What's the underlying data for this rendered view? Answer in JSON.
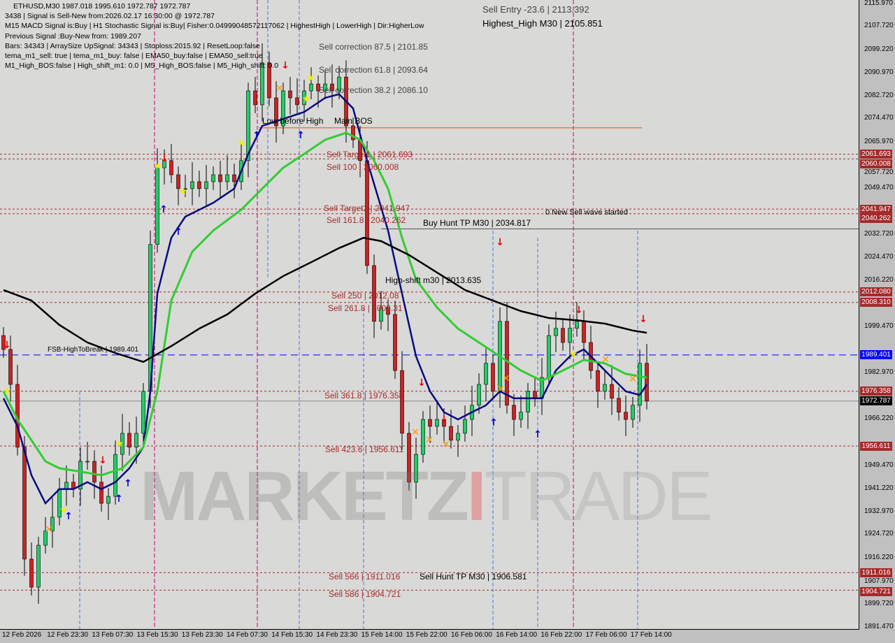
{
  "header": {
    "symbol_line": "ETHUSD,M30  1987.018 1995.610 1972.787 1972.787",
    "info_lines": [
      "3438 | Signal is Sell-New from:2026.02.17 16:30:00 @ 1972.787",
      "M15 MACD Signal is:Buy | H1 Stochastic Signal is:Buy| Fisher:0.04999048572117062 | HighestHigh | LowerHigh | Dir:HigherLow",
      "Previous Signal :Buy-New from: 1989.207",
      "Bars: 34343 | ArraySize UpSignal: 34343 | Stoploss:2015.92 | ResetLoop:false",
      "tema_m1_sell: true | tema_m1_buy: false | EMA50_buy:false | EMA50_sell:true",
      "M1_High_BOS:false | High_shift_m1: 0.0 | M5_High_BOS:false | M5_High_shift: 0.0"
    ]
  },
  "annotations": {
    "sell_entry": "Sell Entry -23.6 | 2113.392",
    "highest_high": "Highest_High    M30 | 2105.851",
    "corr_875": "Sell correction 87.5 | 2101.85",
    "corr_618": "Sell correction 61.8 | 2093.64",
    "corr_382": "Sell correction 38.2 | 2086.10",
    "low_before_high": "Low before High",
    "main_bos": "Main BOS",
    "sell_target1": "Sell Target1 | 2061.693",
    "sell_100": "Sell 100 | 2060.008",
    "sell_target2": "Sell Target2 | 2041.947",
    "sell_1618": "Sell 161.8 | 2040.262",
    "buy_hunt": "Buy Hunt TP M30 | 2034.817",
    "new_sell_wave": "0 New Sell wave started",
    "high_shift": "High-shift m30 | 2013.635",
    "sell_250": "Sell 250 | 2012.08",
    "sell_2618": "Sell 261.8 | 2008.31",
    "fsb": "FSB-HighToBreak | 1989.401",
    "sell_3618": "Sell 361.8 | 1976.358",
    "sell_4236": "Sell 423.6 | 1956.611",
    "sell_566": "Sell 566 | 1911.016",
    "sell_hunt": "Sell Hunt TP M30 | 1906.581",
    "sell_586": "Sell 586 | 1904.721"
  },
  "watermark": {
    "left": "MARKETZ",
    "bar": "I",
    "right": "TRADE"
  },
  "chart_data": {
    "type": "candlestick",
    "symbol": "ETHUSD",
    "timeframe": "M30",
    "ylim": [
      1891.47,
      2115.97
    ],
    "y_ticks": [
      "2115.970",
      "2107.720",
      "2099.220",
      "2090.970",
      "2082.720",
      "2074.470",
      "2065.970",
      "2057.720",
      "2049.470",
      "2032.720",
      "2024.470",
      "2016.220",
      "1999.470",
      "1982.970",
      "1966.220",
      "1949.470",
      "1941.220",
      "1932.970",
      "1924.720",
      "1916.220",
      "1907.970",
      "1899.720",
      "1891.470"
    ],
    "x_ticks": [
      "12 Feb 2026",
      "12 Feb 23:30",
      "13 Feb 07:30",
      "13 Feb 15:30",
      "13 Feb 23:30",
      "14 Feb 07:30",
      "14 Feb 15:30",
      "14 Feb 23:30",
      "15 Feb 14:00",
      "15 Feb 22:00",
      "16 Feb 06:00",
      "16 Feb 14:00",
      "16 Feb 22:00",
      "17 Feb 06:00",
      "17 Feb 14:00"
    ],
    "closes": [
      1991.4,
      1978.8,
      1956.2,
      1915.9,
      1905.8,
      1920.9,
      1926.0,
      1931.0,
      1941.1,
      1943.6,
      1941.1,
      1951.1,
      1951.1,
      1943.6,
      1936.0,
      1938.5,
      1953.6,
      1961.2,
      1956.2,
      1961.2,
      1976.3,
      2029.2,
      2056.8,
      2059.4,
      2054.3,
      2049.3,
      2049.3,
      2051.8,
      2049.3,
      2051.8,
      2054.3,
      2051.8,
      2054.3,
      2051.8,
      2059.4,
      2084.5,
      2079.5,
      2094.6,
      2082.0,
      2071.9,
      2084.5,
      2082.0,
      2079.5,
      2084.5,
      2087.0,
      2084.5,
      2087.0,
      2084.5,
      2089.5,
      2071.9,
      2066.9,
      2059.4,
      2021.6,
      2001.5,
      2006.5,
      2004.0,
      1983.8,
      1961.2,
      1943.6,
      1953.6,
      1966.2,
      1963.7,
      1966.2,
      1963.7,
      1958.7,
      1961.2,
      1966.2,
      1971.3,
      1978.8,
      1986.4,
      1976.3,
      2001.5,
      1971.3,
      1966.2,
      1968.8,
      1976.3,
      1973.8,
      1981.3,
      1996.4,
      1999.0,
      1993.9,
      1999.0,
      2001.5,
      1993.9,
      1983.8,
      1976.3,
      1978.8,
      1973.8,
      1968.8,
      1966.2,
      1971.3,
      1986.4,
      1972.8
    ],
    "ma_series": [
      {
        "color": "#0a0a80",
        "points": [
          [
            0,
            1973.8
          ],
          [
            2,
            1963.7
          ],
          [
            4,
            1946.1
          ],
          [
            6,
            1936.0
          ],
          [
            8,
            1941.1
          ],
          [
            10,
            1941.1
          ],
          [
            12,
            1943.6
          ],
          [
            14,
            1941.1
          ],
          [
            16,
            1943.6
          ],
          [
            18,
            1948.6
          ],
          [
            20,
            1956.2
          ],
          [
            21,
            1976.3
          ],
          [
            22,
            2011.5
          ],
          [
            24,
            2031.6
          ],
          [
            26,
            2039.2
          ],
          [
            28,
            2041.7
          ],
          [
            30,
            2044.2
          ],
          [
            33,
            2049.3
          ],
          [
            35,
            2061.8
          ],
          [
            37,
            2071.9
          ],
          [
            40,
            2074.4
          ],
          [
            43,
            2076.9
          ],
          [
            46,
            2082.0
          ],
          [
            48,
            2083.3
          ],
          [
            50,
            2078.2
          ],
          [
            52,
            2059.4
          ],
          [
            55,
            2034.2
          ],
          [
            57,
            2011.5
          ],
          [
            59,
            1988.9
          ],
          [
            61,
            1976.3
          ],
          [
            63,
            1968.8
          ],
          [
            65,
            1966.2
          ],
          [
            67,
            1968.8
          ],
          [
            69,
            1971.3
          ],
          [
            71,
            1976.3
          ],
          [
            73,
            1973.8
          ],
          [
            75,
            1973.8
          ],
          [
            77,
            1973.8
          ],
          [
            79,
            1983.8
          ],
          [
            81,
            1988.9
          ],
          [
            83,
            1991.4
          ],
          [
            85,
            1986.4
          ],
          [
            87,
            1981.3
          ],
          [
            89,
            1976.3
          ],
          [
            91,
            1975.0
          ],
          [
            92,
            1978.8
          ]
        ]
      },
      {
        "color": "#33cc33",
        "points": [
          [
            0,
            1976.3
          ],
          [
            2,
            1966.2
          ],
          [
            4,
            1958.7
          ],
          [
            6,
            1951.1
          ],
          [
            8,
            1948.6
          ],
          [
            11,
            1947.4
          ],
          [
            14,
            1946.1
          ],
          [
            17,
            1948.6
          ],
          [
            20,
            1956.2
          ],
          [
            22,
            1976.3
          ],
          [
            24,
            2009.0
          ],
          [
            27,
            2026.6
          ],
          [
            30,
            2034.2
          ],
          [
            34,
            2041.7
          ],
          [
            37,
            2049.3
          ],
          [
            40,
            2056.8
          ],
          [
            43,
            2061.8
          ],
          [
            46,
            2066.9
          ],
          [
            49,
            2069.4
          ],
          [
            51,
            2066.9
          ],
          [
            53,
            2059.4
          ],
          [
            55,
            2049.3
          ],
          [
            57,
            2031.6
          ],
          [
            59,
            2016.6
          ],
          [
            62,
            2006.5
          ],
          [
            65,
            1998.9
          ],
          [
            68,
            1993.9
          ],
          [
            71,
            1988.9
          ],
          [
            74,
            1983.8
          ],
          [
            77,
            1980.1
          ],
          [
            80,
            1983.8
          ],
          [
            83,
            1987.6
          ],
          [
            86,
            1986.4
          ],
          [
            89,
            1982.6
          ],
          [
            92,
            1981.3
          ]
        ]
      },
      {
        "color": "#000000",
        "points": [
          [
            0,
            2012.8
          ],
          [
            4,
            2009.0
          ],
          [
            8,
            2000.2
          ],
          [
            12,
            1993.9
          ],
          [
            16,
            1990.1
          ],
          [
            20,
            1986.9
          ],
          [
            24,
            1992.6
          ],
          [
            28,
            1998.9
          ],
          [
            32,
            2004.0
          ],
          [
            36,
            2011.5
          ],
          [
            40,
            2017.8
          ],
          [
            44,
            2022.8
          ],
          [
            48,
            2027.9
          ],
          [
            51.5,
            2031.6
          ],
          [
            54,
            2030.4
          ],
          [
            58,
            2025.4
          ],
          [
            62,
            2019.1
          ],
          [
            66,
            2012.8
          ],
          [
            70,
            2009.0
          ],
          [
            74,
            2005.2
          ],
          [
            78,
            2002.7
          ],
          [
            82,
            2001.9
          ],
          [
            86,
            2000.7
          ],
          [
            90,
            1998.2
          ],
          [
            92,
            1997.4
          ]
        ]
      }
    ],
    "levels": [
      {
        "price": 2061.693,
        "label": "2061.693",
        "color": "#a52a2a"
      },
      {
        "price": 2060.008,
        "label": "2060.008",
        "color": "#a52a2a"
      },
      {
        "price": 2041.947,
        "label": "2041.947",
        "color": "#a52a2a"
      },
      {
        "price": 2040.262,
        "label": "2040.262",
        "color": "#a52a2a"
      },
      {
        "price": 2012.08,
        "label": "2012.080",
        "color": "#a52a2a"
      },
      {
        "price": 2008.31,
        "label": "2008.310",
        "color": "#a52a2a"
      },
      {
        "price": 1989.401,
        "label": "1989.401",
        "color": "#0000ff"
      },
      {
        "price": 1976.358,
        "label": "1976.358",
        "color": "#a52a2a"
      },
      {
        "price": 1972.787,
        "label": "1972.787",
        "color": "#000000"
      },
      {
        "price": 1956.611,
        "label": "1956.611",
        "color": "#a52a2a"
      },
      {
        "price": 1911.016,
        "label": "1911.016",
        "color": "#a52a2a"
      },
      {
        "price": 1904.721,
        "label": "1904.721",
        "color": "#a52a2a"
      }
    ],
    "colors": {
      "bull": "#22cc66",
      "bear": "#cc2222",
      "bos_line": "#ff4500"
    }
  }
}
